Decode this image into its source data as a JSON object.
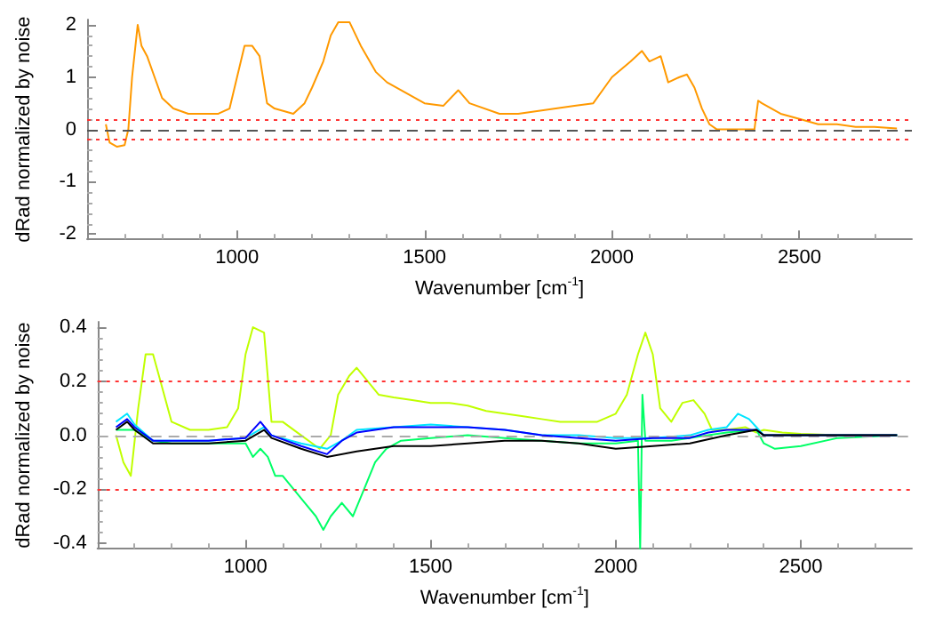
{
  "chart_data": [
    {
      "type": "line",
      "xlabel": "Wavenumber [cm$^{-1}$]",
      "ylabel": "dRad normalized by noise",
      "xlim": [
        600,
        2800
      ],
      "xticks": [
        1000,
        1500,
        2000,
        2500
      ],
      "ylim": [
        -2.1,
        2.1
      ],
      "yticks": [
        -2,
        -1,
        0,
        1,
        2
      ],
      "ref_lines": [
        {
          "axis": "y",
          "value": 0,
          "color": "#555555",
          "line_style": "dashed"
        },
        {
          "axis": "y",
          "value": 0.2,
          "color": "#ff3333",
          "line_style": "dotted"
        },
        {
          "axis": "y",
          "value": -0.2,
          "color": "#ff3333",
          "line_style": "dotted"
        }
      ],
      "series": [
        {
          "color": "#ff9900",
          "x": [
            650,
            660,
            680,
            700,
            710,
            720,
            735,
            745,
            760,
            780,
            800,
            830,
            870,
            900,
            950,
            980,
            1000,
            1020,
            1040,
            1060,
            1080,
            1100,
            1150,
            1180,
            1200,
            1230,
            1250,
            1270,
            1300,
            1330,
            1370,
            1400,
            1450,
            1500,
            1550,
            1590,
            1620,
            1700,
            1750,
            1800,
            1850,
            1900,
            1950,
            1980,
            2000,
            2050,
            2080,
            2100,
            2130,
            2150,
            2180,
            2200,
            2220,
            2240,
            2260,
            2280,
            2300,
            2380,
            2390,
            2400,
            2450,
            2500,
            2550,
            2600,
            2650,
            2700,
            2760
          ],
          "values": [
            0.1,
            -0.25,
            -0.33,
            -0.3,
            0,
            1.0,
            2.0,
            1.6,
            1.4,
            1.0,
            0.6,
            0.4,
            0.3,
            0.3,
            0.3,
            0.4,
            1.0,
            1.6,
            1.6,
            1.4,
            0.5,
            0.4,
            0.3,
            0.5,
            0.8,
            1.3,
            1.8,
            2.05,
            2.05,
            1.6,
            1.1,
            0.9,
            0.7,
            0.5,
            0.45,
            0.75,
            0.5,
            0.3,
            0.3,
            0.35,
            0.4,
            0.45,
            0.5,
            0.8,
            1.0,
            1.3,
            1.5,
            1.3,
            1.4,
            0.9,
            1.0,
            1.05,
            0.8,
            0.4,
            0.1,
            0,
            0,
            0,
            0.55,
            0.5,
            0.3,
            0.2,
            0.1,
            0.1,
            0.05,
            0.05,
            0.02
          ]
        }
      ]
    },
    {
      "type": "line",
      "xlabel": "Wavenumber [cm$^{-1}$]",
      "ylabel": "dRad normalized by noise",
      "xlim": [
        600,
        2800
      ],
      "xticks": [
        1000,
        1500,
        2000,
        2500
      ],
      "ylim": [
        -0.42,
        0.42
      ],
      "yticks": [
        -0.4,
        -0.2,
        {
          "value": 0,
          "label": "0.0"
        },
        0.2,
        0.4
      ],
      "ref_lines": [
        {
          "axis": "y",
          "value": 0,
          "color": "#aaaaaa",
          "line_style": "dashed"
        },
        {
          "axis": "y",
          "value": 0.2,
          "color": "#ff3333",
          "line_style": "dotted"
        },
        {
          "axis": "y",
          "value": -0.2,
          "color": "#ff3333",
          "line_style": "dotted"
        }
      ],
      "series": [
        {
          "color": "#c0ff00",
          "x": [
            650,
            670,
            690,
            710,
            730,
            750,
            770,
            800,
            850,
            900,
            950,
            980,
            1000,
            1020,
            1050,
            1070,
            1100,
            1150,
            1200,
            1230,
            1250,
            1280,
            1300,
            1330,
            1360,
            1400,
            1450,
            1500,
            1550,
            1600,
            1650,
            1700,
            1750,
            1800,
            1850,
            1900,
            1950,
            2000,
            2030,
            2060,
            2080,
            2100,
            2120,
            2150,
            2180,
            2210,
            2240,
            2260,
            2300,
            2350,
            2380,
            2400,
            2450,
            2500,
            2600,
            2760
          ],
          "values": [
            0,
            -0.1,
            -0.15,
            0.1,
            0.3,
            0.3,
            0.2,
            0.05,
            0.02,
            0.02,
            0.03,
            0.1,
            0.3,
            0.4,
            0.38,
            0.05,
            0.05,
            0,
            -0.05,
            0,
            0.15,
            0.22,
            0.25,
            0.2,
            0.15,
            0.14,
            0.13,
            0.12,
            0.12,
            0.11,
            0.09,
            0.08,
            0.07,
            0.06,
            0.05,
            0.05,
            0.05,
            0.08,
            0.15,
            0.3,
            0.38,
            0.3,
            0.1,
            0.05,
            0.12,
            0.13,
            0.08,
            0.02,
            0.02,
            0.03,
            0.01,
            0.02,
            0.01,
            0.005,
            0,
            0
          ]
        },
        {
          "color": "#00ff66",
          "x": [
            650,
            700,
            750,
            800,
            900,
            1000,
            1020,
            1040,
            1060,
            1080,
            1100,
            1130,
            1160,
            1190,
            1210,
            1230,
            1260,
            1290,
            1320,
            1350,
            1380,
            1420,
            1500,
            1600,
            1700,
            1800,
            1900,
            2000,
            2060,
            2066,
            2072,
            2080,
            2150,
            2250,
            2300,
            2380,
            2400,
            2430,
            2500,
            2600,
            2760
          ],
          "values": [
            0.02,
            0.02,
            -0.02,
            -0.03,
            -0.03,
            -0.03,
            -0.08,
            -0.05,
            -0.08,
            -0.15,
            -0.15,
            -0.2,
            -0.25,
            -0.3,
            -0.35,
            -0.3,
            -0.25,
            -0.3,
            -0.2,
            -0.1,
            -0.05,
            -0.02,
            -0.01,
            0,
            -0.01,
            -0.02,
            -0.03,
            -0.03,
            -0.02,
            -0.42,
            0.15,
            -0.02,
            -0.02,
            0,
            0.01,
            0.02,
            -0.03,
            -0.05,
            -0.04,
            -0.01,
            0
          ]
        },
        {
          "color": "#00e5ff",
          "x": [
            650,
            680,
            700,
            750,
            900,
            1000,
            1050,
            1070,
            1150,
            1220,
            1260,
            1300,
            1400,
            1500,
            1600,
            1700,
            1800,
            1900,
            2000,
            2100,
            2200,
            2250,
            2300,
            2330,
            2360,
            2380,
            2400,
            2500,
            2760
          ],
          "values": [
            0.05,
            0.08,
            0.04,
            -0.02,
            -0.02,
            -0.01,
            0.03,
            0,
            -0.03,
            -0.05,
            -0.02,
            0.02,
            0.03,
            0.04,
            0.03,
            0.02,
            0,
            0,
            -0.01,
            -0.01,
            0,
            0.02,
            0.03,
            0.08,
            0.06,
            0.03,
            0,
            0,
            0
          ]
        },
        {
          "color": "#0000ff",
          "x": [
            650,
            680,
            700,
            750,
            900,
            1000,
            1040,
            1070,
            1150,
            1220,
            1260,
            1300,
            1400,
            1500,
            1600,
            1700,
            1800,
            1900,
            2000,
            2100,
            2200,
            2250,
            2300,
            2380,
            2400,
            2760
          ],
          "values": [
            0.03,
            0.06,
            0.03,
            -0.02,
            -0.02,
            -0.01,
            0.05,
            0,
            -0.04,
            -0.07,
            -0.02,
            0.01,
            0.03,
            0.03,
            0.03,
            0.02,
            0,
            -0.01,
            -0.02,
            -0.01,
            -0.01,
            0.01,
            0.02,
            0.02,
            0,
            0
          ]
        },
        {
          "color": "#000000",
          "x": [
            650,
            680,
            700,
            750,
            900,
            1000,
            1050,
            1070,
            1150,
            1220,
            1300,
            1400,
            1500,
            1600,
            1700,
            1800,
            1900,
            2000,
            2100,
            2200,
            2300,
            2380,
            2400,
            2760
          ],
          "values": [
            0.02,
            0.05,
            0.02,
            -0.03,
            -0.03,
            -0.02,
            0.02,
            -0.01,
            -0.05,
            -0.08,
            -0.06,
            -0.04,
            -0.04,
            -0.03,
            -0.02,
            -0.02,
            -0.03,
            -0.05,
            -0.04,
            -0.03,
            0,
            0.02,
            0,
            0
          ]
        }
      ]
    }
  ]
}
